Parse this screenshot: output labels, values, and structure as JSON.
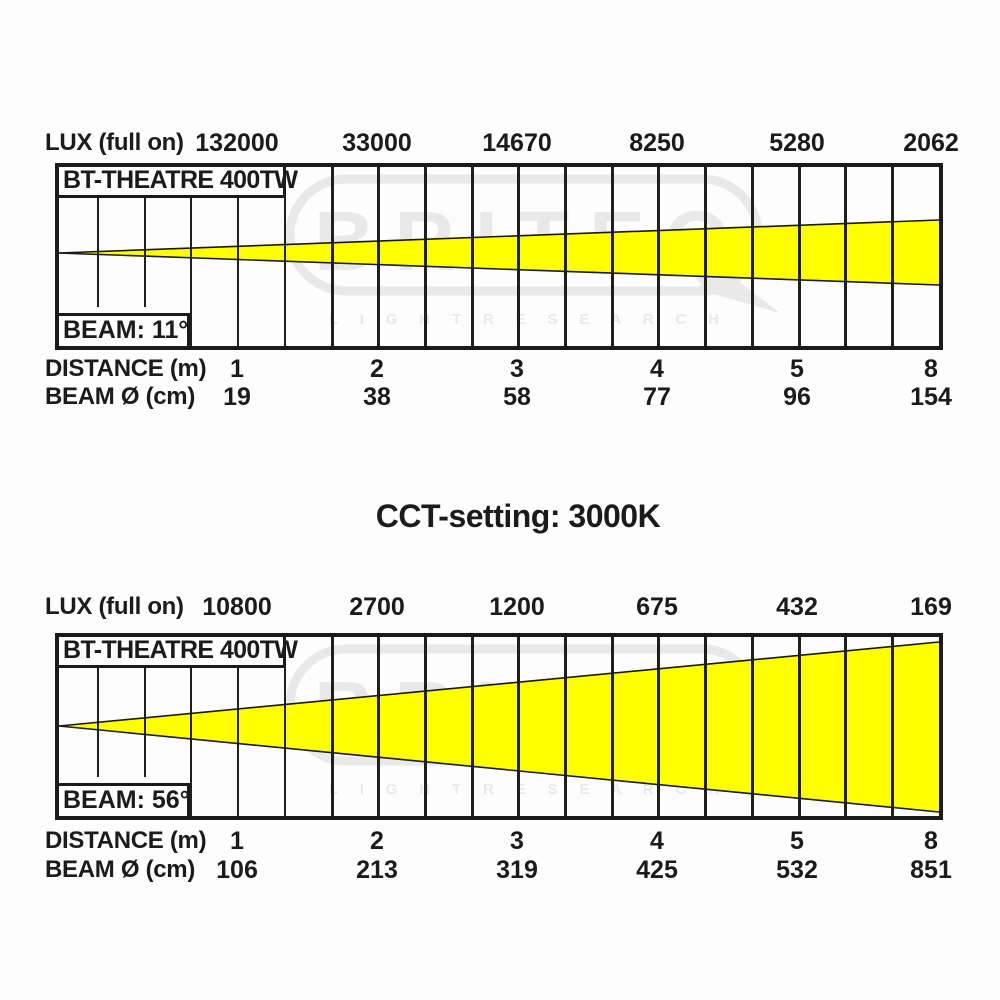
{
  "title": {
    "text": "CCT-setting: 3000K"
  },
  "watermark": {
    "brand": "BRITEQ",
    "subtext": "L I G H T   R E S E A R C H",
    "color": "#e9e9e9"
  },
  "charts": [
    {
      "lux_label": "LUX (full on)",
      "fixture_label": "BT-THEATRE 400TW",
      "beam_label": "BEAM: 11°",
      "distance_label": "DISTANCE (m)",
      "diameter_label": "BEAM Ø (cm)",
      "lux_values": [
        "132000",
        "33000",
        "14670",
        "8250",
        "5280",
        "2062"
      ],
      "distance_values": [
        "1",
        "2",
        "3",
        "4",
        "5",
        "8"
      ],
      "diameter_values": [
        "19",
        "38",
        "58",
        "77",
        "96",
        "154"
      ],
      "beam_color": "#ffff00",
      "beam_geometry": {
        "apex_y": 86,
        "right_top_y": 53,
        "right_bottom_y": 118
      }
    },
    {
      "lux_label": "LUX (full on)",
      "fixture_label": "BT-THEATRE 400TW",
      "beam_label": "BEAM: 56°",
      "distance_label": "DISTANCE (m)",
      "diameter_label": "BEAM Ø (cm)",
      "lux_values": [
        "10800",
        "2700",
        "1200",
        "675",
        "432",
        "169"
      ],
      "distance_values": [
        "1",
        "2",
        "3",
        "4",
        "5",
        "8"
      ],
      "diameter_values": [
        "106",
        "213",
        "319",
        "425",
        "532",
        "851"
      ],
      "beam_color": "#ffff00",
      "beam_geometry": {
        "apex_y": 89,
        "right_top_y": 5,
        "right_bottom_y": 175
      }
    }
  ],
  "chart_data": [
    {
      "type": "area",
      "title": "BT-THEATRE 400TW",
      "annotation": "BEAM: 11°",
      "beam_angle_deg": 11,
      "xlabel": "DISTANCE (m)",
      "x": [
        1,
        2,
        3,
        4,
        5,
        8
      ],
      "series": [
        {
          "name": "LUX (full on)",
          "values": [
            132000,
            33000,
            14670,
            8250,
            5280,
            2062
          ]
        },
        {
          "name": "BEAM Ø (cm)",
          "values": [
            19,
            38,
            58,
            77,
            96,
            154
          ]
        }
      ],
      "grid": true,
      "legend_position": "none",
      "fill_color": "#ffff00"
    },
    {
      "type": "area",
      "title": "BT-THEATRE 400TW",
      "subtitle": "CCT-setting: 3000K",
      "annotation": "BEAM: 56°",
      "beam_angle_deg": 56,
      "xlabel": "DISTANCE (m)",
      "x": [
        1,
        2,
        3,
        4,
        5,
        8
      ],
      "series": [
        {
          "name": "LUX (full on)",
          "values": [
            10800,
            2700,
            1200,
            675,
            432,
            169
          ]
        },
        {
          "name": "BEAM Ø (cm)",
          "values": [
            106,
            213,
            319,
            425,
            532,
            851
          ]
        }
      ],
      "grid": true,
      "legend_position": "none",
      "fill_color": "#ffff00"
    }
  ]
}
